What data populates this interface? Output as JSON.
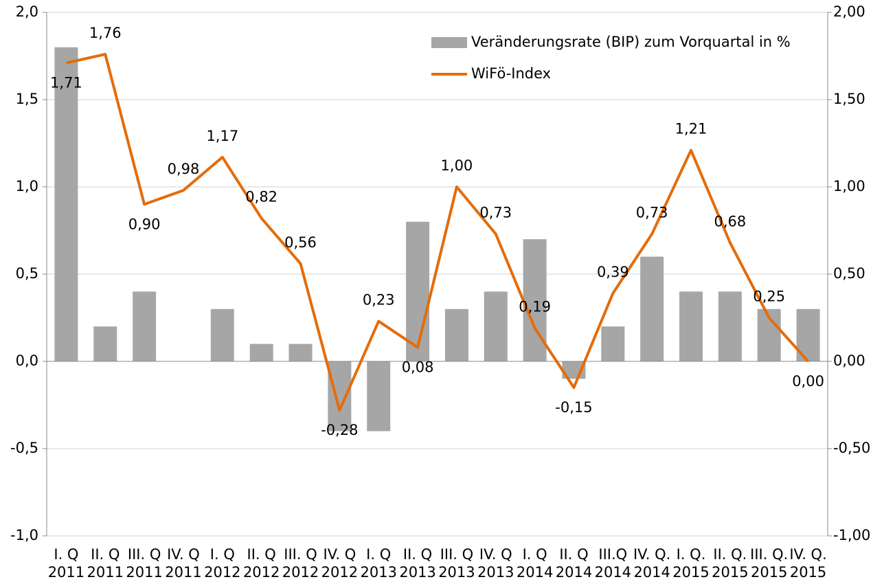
{
  "chart_data": {
    "type": "bar+line",
    "categories": [
      [
        "I. Q",
        "2011"
      ],
      [
        "II. Q",
        "2011"
      ],
      [
        "III. Q",
        "2011"
      ],
      [
        "IV. Q",
        "2011"
      ],
      [
        "I. Q",
        "2012"
      ],
      [
        "II. Q",
        "2012"
      ],
      [
        "III. Q",
        "2012"
      ],
      [
        "IV. Q",
        "2012"
      ],
      [
        "I. Q",
        "2013"
      ],
      [
        "II. Q",
        "2013"
      ],
      [
        "III. Q",
        "2013"
      ],
      [
        "IV. Q",
        "2013"
      ],
      [
        "I. Q",
        "2014"
      ],
      [
        "II. Q",
        "2014"
      ],
      [
        "III.Q",
        "2014"
      ],
      [
        "IV. Q.",
        "2014"
      ],
      [
        "I. Q.",
        "2015"
      ],
      [
        "II. Q.",
        "2015"
      ],
      [
        "III. Q.",
        "2015"
      ],
      [
        "IV. Q.",
        "2015"
      ]
    ],
    "series": [
      {
        "name": "Veränderungsrate (BIP) zum Vorquartal in %",
        "type": "bar",
        "color": "#a6a6a6",
        "values": [
          1.8,
          0.2,
          0.4,
          0,
          0.3,
          0.1,
          0.1,
          -0.4,
          -0.4,
          0.8,
          0.3,
          0.4,
          0.7,
          -0.1,
          0.2,
          0.6,
          0.4,
          0.4,
          0.3,
          0.3
        ]
      },
      {
        "name": "WiFö-Index",
        "type": "line",
        "axis": "y2",
        "color": "#e46c0a",
        "values": [
          1.71,
          1.76,
          0.9,
          0.98,
          1.17,
          0.82,
          0.56,
          -0.28,
          0.23,
          0.08,
          1.0,
          0.73,
          0.19,
          -0.15,
          0.39,
          0.73,
          1.21,
          0.68,
          0.25,
          0.0
        ],
        "value_labels": [
          "1,71",
          "1,76",
          "0,90",
          "0,98",
          "1,17",
          "0,82",
          "0,56",
          "-0,28",
          "0,23",
          "0,08",
          "1,00",
          "0,73",
          "0,19",
          "-0,15",
          "0,39",
          "0,73",
          "1,21",
          "0,68",
          "0,25",
          "0,00"
        ]
      }
    ],
    "ylim": [
      -1,
      2
    ],
    "yticks": [
      {
        "value": -1,
        "label": "-1,0"
      },
      {
        "value": -0.5,
        "label": "-0,5"
      },
      {
        "value": 0,
        "label": "0,0"
      },
      {
        "value": 0.5,
        "label": "0,5"
      },
      {
        "value": 1,
        "label": "1,0"
      },
      {
        "value": 1.5,
        "label": "1,5"
      },
      {
        "value": 2,
        "label": "2,0"
      }
    ],
    "y2lim": [
      -1,
      2
    ],
    "y2ticks": [
      {
        "value": -1,
        "label": "-1,00"
      },
      {
        "value": -0.5,
        "label": "-0,50"
      },
      {
        "value": 0,
        "label": "0,00"
      },
      {
        "value": 0.5,
        "label": "0,50"
      },
      {
        "value": 1,
        "label": "1,00"
      },
      {
        "value": 1.5,
        "label": "1,50"
      },
      {
        "value": 2,
        "label": "2,00"
      }
    ],
    "grid": true,
    "legend": "top-right"
  }
}
